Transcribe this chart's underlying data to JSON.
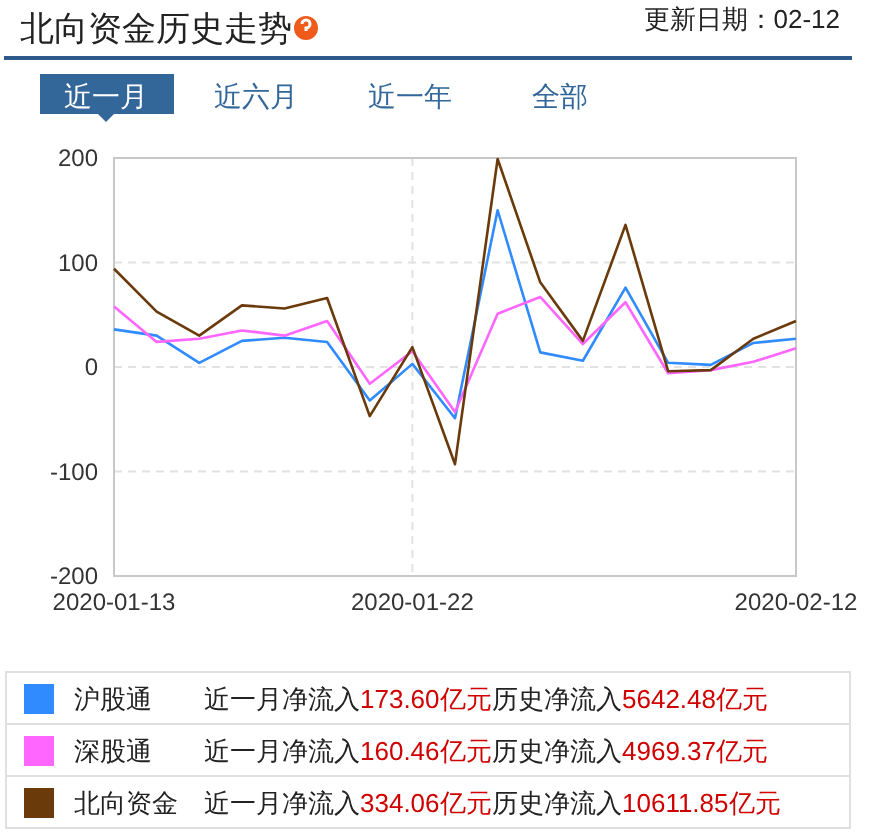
{
  "chart_data": {
    "type": "line",
    "title": "北向资金历史走势",
    "annotations": [
      "更新日期：02-12",
      "近一月",
      "近六月",
      "近一年",
      "全部",
      "近一月净流入",
      "173.60亿元",
      "历史净流入",
      "5642.48亿元",
      "近一月净流入",
      "160.46亿元",
      "历史净流入",
      "4969.37亿元",
      "近一月净流入",
      "334.06亿元",
      "历史净流入",
      "10611.85亿元"
    ],
    "categories": [
      "2020-01-13",
      null,
      null,
      null,
      null,
      null,
      null,
      "2020-01-22",
      null,
      null,
      null,
      null,
      null,
      null,
      null,
      null,
      "2020-02-12"
    ],
    "series": [
      {
        "name": "沪股通",
        "color": "#2f8bff",
        "values": [
          36,
          30,
          4,
          25,
          28,
          24,
          -32,
          3,
          -49,
          150,
          14,
          6,
          76,
          4,
          2,
          23,
          27
        ]
      },
      {
        "name": "深股通",
        "color": "#ff66ff",
        "values": [
          58,
          24,
          27,
          35,
          30,
          44,
          -16,
          15,
          -43,
          51,
          67,
          22,
          62,
          -6,
          -3,
          5,
          18
        ]
      },
      {
        "name": "北向资金",
        "color": "#6b3a0b",
        "values": [
          94,
          53,
          30,
          59,
          56,
          66,
          -47,
          19,
          -93,
          199,
          81,
          25,
          136,
          -4,
          -3,
          27,
          44
        ]
      }
    ],
    "ylim": [
      -200,
      200
    ],
    "yticks": [
      -200,
      -100,
      0,
      100,
      200
    ],
    "grid": true,
    "legend": "bottom"
  }
}
